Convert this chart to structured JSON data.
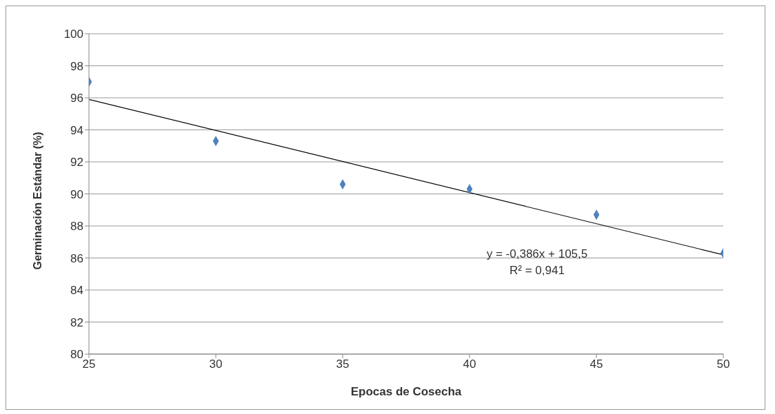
{
  "chart_data": {
    "type": "scatter",
    "xlabel": "Epocas de Cosecha",
    "ylabel": "Germinación Estándar (%)",
    "x": [
      25,
      30,
      35,
      40,
      45,
      50
    ],
    "series": [
      {
        "color": "#4f81bd",
        "marker": "diamond",
        "values": [
          97.0,
          93.3,
          90.6,
          90.3,
          88.7,
          86.3
        ]
      },
      {
        "type": "line",
        "color": "#000000",
        "marker": "none",
        "x": [
          25,
          50
        ],
        "values": [
          95.9,
          86.2
        ]
      }
    ],
    "xlim": [
      25,
      50
    ],
    "xticks": [
      25,
      30,
      35,
      40,
      45,
      50
    ],
    "ylim": [
      80,
      100
    ],
    "yticks": [
      80,
      82,
      84,
      86,
      88,
      90,
      92,
      94,
      96,
      98,
      100
    ],
    "grid": "y",
    "annotations": [
      "y = -0,386x + 105,5",
      "R² = 0,941"
    ]
  }
}
